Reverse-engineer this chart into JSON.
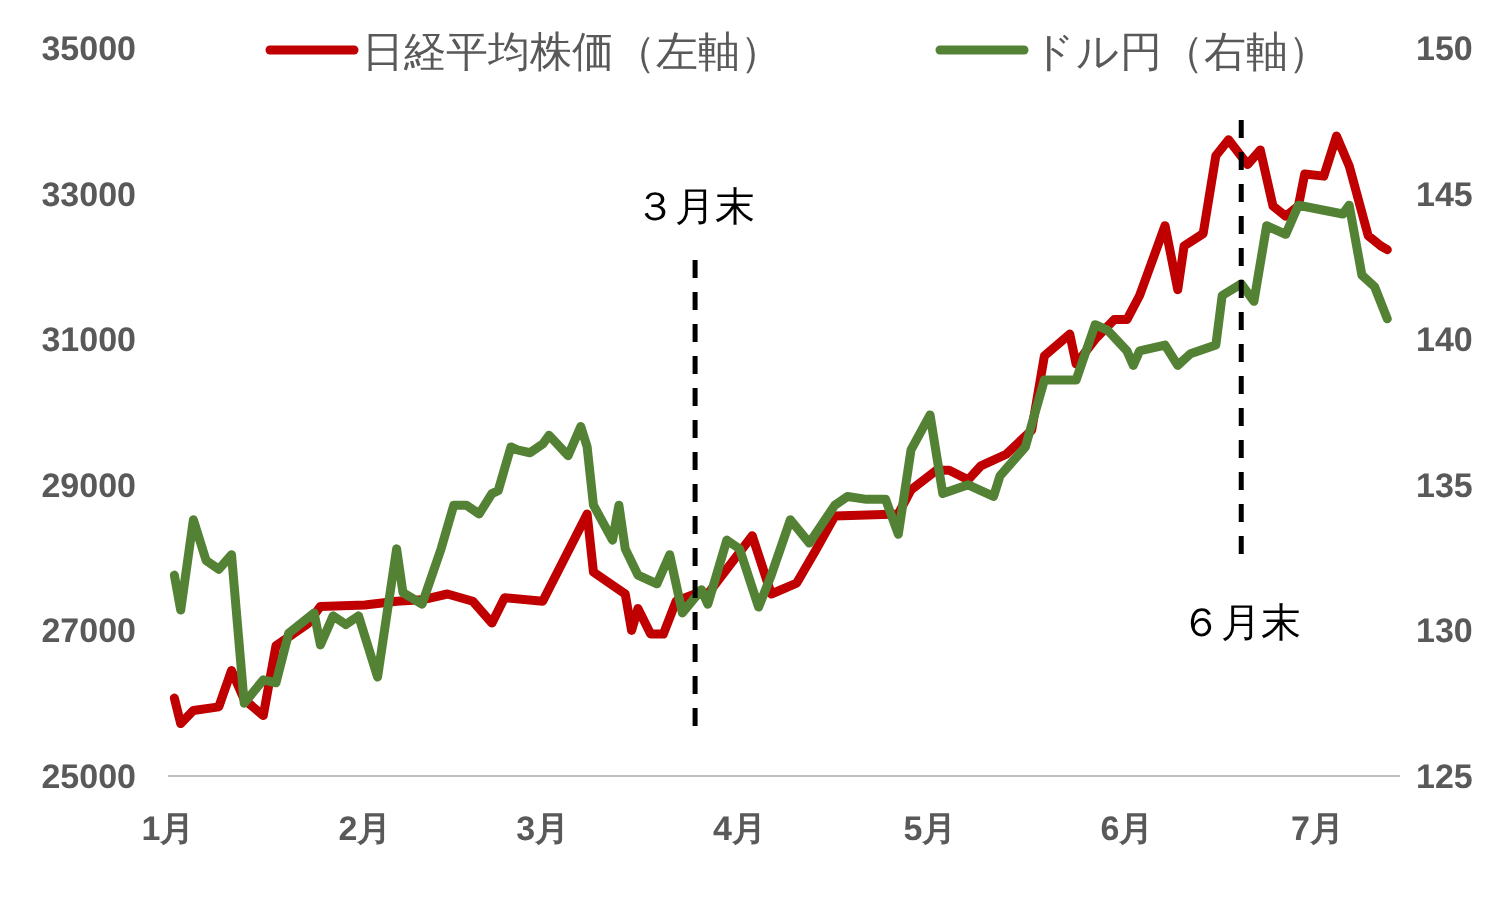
{
  "chart_data": {
    "type": "line",
    "xlim": [
      "--01-01",
      "--07-14"
    ],
    "xticks": [
      {
        "value": "--01-01",
        "label": "1月"
      },
      {
        "value": "--02-01",
        "label": "2月"
      },
      {
        "value": "--03-01",
        "label": "3月"
      },
      {
        "value": "--04-01",
        "label": "4月"
      },
      {
        "value": "--05-01",
        "label": "5月"
      },
      {
        "value": "--06-01",
        "label": "6月"
      },
      {
        "value": "--07-01",
        "label": "7月"
      }
    ],
    "ylim": [
      25000,
      35000
    ],
    "yticks": [
      25000,
      27000,
      29000,
      31000,
      33000,
      35000
    ],
    "y2lim": [
      125,
      150
    ],
    "y2ticks": [
      125,
      130,
      135,
      140,
      145,
      150
    ],
    "legend": "top",
    "grid": false,
    "marker": "none",
    "line_style": "solid",
    "ref_lines": [
      {
        "axis": "x",
        "value": "--03-25",
        "label": "３月末",
        "color": "#000000",
        "line_style": "dashed"
      },
      {
        "axis": "x",
        "value": "--06-19",
        "label": "６月末",
        "color": "#000000",
        "line_style": "dashed"
      }
    ],
    "series": [
      {
        "name": "日経平均株価（左軸）",
        "color": "#c00000",
        "x": [
          "--01-02",
          "--01-03",
          "--01-05",
          "--01-09",
          "--01-11",
          "--01-13",
          "--01-16",
          "--01-18",
          "--01-23",
          "--01-25",
          "--02-01",
          "--02-06",
          "--02-10",
          "--02-14",
          "--02-18",
          "--02-21",
          "--02-23",
          "--03-01",
          "--03-08",
          "--03-09",
          "--03-14",
          "--03-15",
          "--03-16",
          "--03-18",
          "--03-20",
          "--03-22",
          "--03-25",
          "--03-27",
          "--04-03",
          "--04-06",
          "--04-10",
          "--04-13",
          "--04-16",
          "--04-26",
          "--04-28",
          "--05-02",
          "--05-04",
          "--05-07",
          "--05-09",
          "--05-13",
          "--05-17",
          "--05-19",
          "--05-23",
          "--05-24",
          "--05-27",
          "--05-30",
          "--06-01",
          "--06-03",
          "--06-07",
          "--06-09",
          "--06-10",
          "--06-13",
          "--06-15",
          "--06-17",
          "--06-20",
          "--06-22",
          "--06-24",
          "--06-26",
          "--06-28",
          "--06-29",
          "--07-02",
          "--07-04",
          "--07-06",
          "--07-09",
          "--07-11",
          "--07-12"
        ],
        "values": [
          26070,
          25720,
          25900,
          25950,
          26450,
          26050,
          25830,
          26790,
          27090,
          27330,
          27350,
          27400,
          27420,
          27500,
          27400,
          27100,
          27450,
          27400,
          28600,
          27800,
          27500,
          27000,
          27300,
          26950,
          26950,
          27400,
          27500,
          27500,
          28300,
          27500,
          27650,
          28100,
          28570,
          28600,
          28930,
          29200,
          29200,
          29070,
          29260,
          29420,
          29750,
          30770,
          31070,
          30660,
          31000,
          31270,
          31270,
          31600,
          32560,
          31680,
          32280,
          32450,
          33520,
          33740,
          33400,
          33600,
          32830,
          32690,
          32830,
          33270,
          33240,
          33790,
          33380,
          32420,
          32280,
          32230
        ]
      },
      {
        "name": "ドル円（右軸）",
        "color": "#548235",
        "axis": "y2",
        "x": [
          "--01-02",
          "--01-03",
          "--01-05",
          "--01-07",
          "--01-09",
          "--01-11",
          "--01-13",
          "--01-16",
          "--01-18",
          "--01-20",
          "--01-24",
          "--01-25",
          "--01-27",
          "--01-29",
          "--01-31",
          "--02-03",
          "--02-06",
          "--02-07",
          "--02-10",
          "--02-13",
          "--02-15",
          "--02-17",
          "--02-19",
          "--02-21",
          "--02-22",
          "--02-24",
          "--02-25",
          "--02-27",
          "--03-01",
          "--03-02",
          "--03-05",
          "--03-07",
          "--03-08",
          "--03-09",
          "--03-12",
          "--03-13",
          "--03-14",
          "--03-16",
          "--03-19",
          "--03-21",
          "--03-23",
          "--03-26",
          "--03-27",
          "--03-30",
          "--04-01",
          "--04-04",
          "--04-06",
          "--04-09",
          "--04-12",
          "--04-16",
          "--04-18",
          "--04-21",
          "--04-24",
          "--04-26",
          "--04-28",
          "--05-01",
          "--05-03",
          "--05-07",
          "--05-11",
          "--05-12",
          "--05-16",
          "--05-19",
          "--05-24",
          "--05-27",
          "--05-29",
          "--06-01",
          "--06-02",
          "--06-03",
          "--06-07",
          "--06-09",
          "--06-11",
          "--06-15",
          "--06-16",
          "--06-19",
          "--06-21",
          "--06-23",
          "--06-26",
          "--06-28",
          "--07-05",
          "--07-06",
          "--07-08",
          "--07-10",
          "--07-12"
        ],
        "values": [
          131.9,
          130.7,
          133.8,
          132.4,
          132.1,
          132.6,
          127.5,
          128.3,
          128.2,
          129.9,
          130.6,
          129.5,
          130.5,
          130.2,
          130.5,
          128.4,
          132.8,
          131.3,
          130.9,
          132.8,
          134.3,
          134.3,
          134.0,
          134.7,
          134.8,
          136.3,
          136.2,
          136.1,
          136.4,
          136.7,
          136.0,
          137.0,
          136.3,
          134.3,
          133.1,
          134.3,
          132.8,
          131.9,
          131.6,
          132.6,
          130.6,
          131.4,
          130.9,
          133.1,
          132.8,
          130.8,
          131.9,
          133.8,
          133.0,
          134.3,
          134.6,
          134.5,
          134.5,
          133.3,
          136.2,
          137.4,
          134.7,
          135.0,
          134.6,
          135.3,
          136.3,
          138.6,
          138.6,
          140.5,
          140.3,
          139.6,
          139.1,
          139.6,
          139.8,
          139.1,
          139.5,
          139.8,
          141.5,
          141.9,
          141.3,
          143.9,
          143.6,
          144.6,
          144.3,
          144.6,
          142.2,
          141.8,
          140.7
        ]
      }
    ]
  }
}
